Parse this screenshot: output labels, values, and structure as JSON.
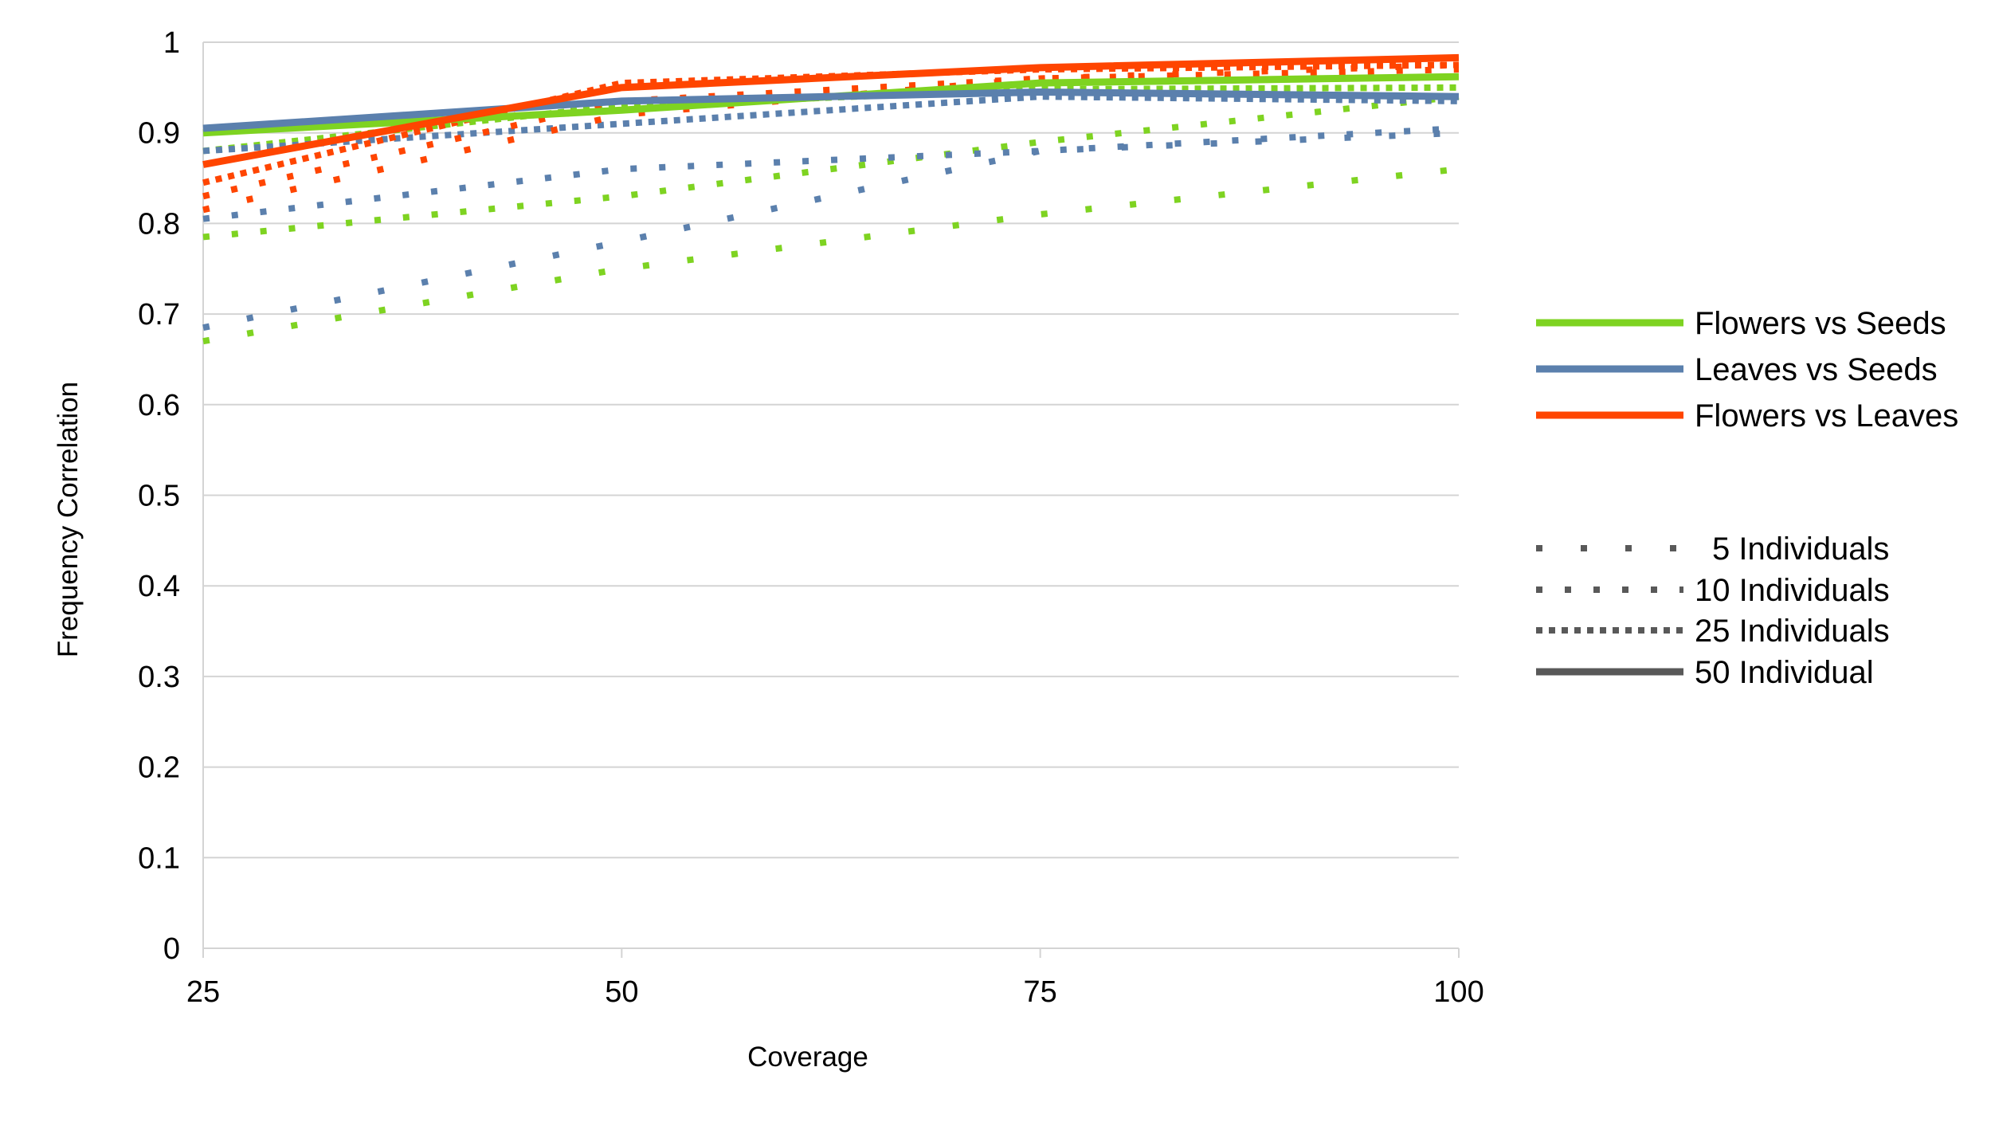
{
  "chart_data": {
    "type": "line",
    "xlabel": "Coverage",
    "ylabel": "Frequency Correlation",
    "xlim": [
      25,
      100
    ],
    "ylim": [
      0,
      1
    ],
    "x_ticks": [
      "25",
      "50",
      "75",
      "100"
    ],
    "y_ticks": [
      "0",
      "0.1",
      "0.2",
      "0.3",
      "0.4",
      "0.5",
      "0.6",
      "0.7",
      "0.8",
      "0.9",
      "1"
    ],
    "grid": "horizontal",
    "legend_placement": "right",
    "comparisons": [
      {
        "name": "Flowers vs Seeds",
        "color": "#7ed321"
      },
      {
        "name": "Leaves vs Seeds",
        "color": "#5b80ad"
      },
      {
        "name": "Flowers vs Leaves",
        "color": "#ff4500"
      }
    ],
    "line_styles": [
      {
        "name": "5 Individuals",
        "style": "sparse-dots"
      },
      {
        "name": "10 Individuals",
        "style": "dots"
      },
      {
        "name": "25 Individuals",
        "style": "dense-dots"
      },
      {
        "name": "50 Individual",
        "style": "solid"
      }
    ],
    "x": [
      25,
      50,
      75,
      100
    ],
    "series": [
      {
        "comparison": "Flowers vs Seeds",
        "individuals": "5 Individuals",
        "values": [
          0.67,
          0.75,
          0.81,
          0.86
        ]
      },
      {
        "comparison": "Flowers vs Seeds",
        "individuals": "10 Individuals",
        "values": [
          0.785,
          0.83,
          0.89,
          0.94
        ]
      },
      {
        "comparison": "Flowers vs Seeds",
        "individuals": "25 Individuals",
        "values": [
          0.88,
          0.93,
          0.948,
          0.95
        ]
      },
      {
        "comparison": "Flowers vs Seeds",
        "individuals": "50 Individual",
        "values": [
          0.9,
          0.925,
          0.955,
          0.962
        ]
      },
      {
        "comparison": "Leaves vs Seeds",
        "individuals": "5 Individuals",
        "values": [
          0.685,
          0.78,
          0.88,
          0.9
        ]
      },
      {
        "comparison": "Leaves vs Seeds",
        "individuals": "10 Individuals",
        "values": [
          0.805,
          0.86,
          0.88,
          0.905
        ]
      },
      {
        "comparison": "Leaves vs Seeds",
        "individuals": "25 Individuals",
        "values": [
          0.88,
          0.91,
          0.94,
          0.935
        ]
      },
      {
        "comparison": "Leaves vs Seeds",
        "individuals": "50 Individual",
        "values": [
          0.905,
          0.935,
          0.945,
          0.94
        ]
      },
      {
        "comparison": "Flowers vs Leaves",
        "individuals": "5 Individuals",
        "values": [
          0.815,
          0.92,
          0.96,
          0.975
        ]
      },
      {
        "comparison": "Flowers vs Leaves",
        "individuals": "10 Individuals",
        "values": [
          0.83,
          0.935,
          0.96,
          0.97
        ]
      },
      {
        "comparison": "Flowers vs Leaves",
        "individuals": "25 Individuals",
        "values": [
          0.845,
          0.955,
          0.97,
          0.975
        ]
      },
      {
        "comparison": "Flowers vs Leaves",
        "individuals": "50 Individual",
        "values": [
          0.865,
          0.95,
          0.972,
          0.983
        ]
      }
    ]
  }
}
